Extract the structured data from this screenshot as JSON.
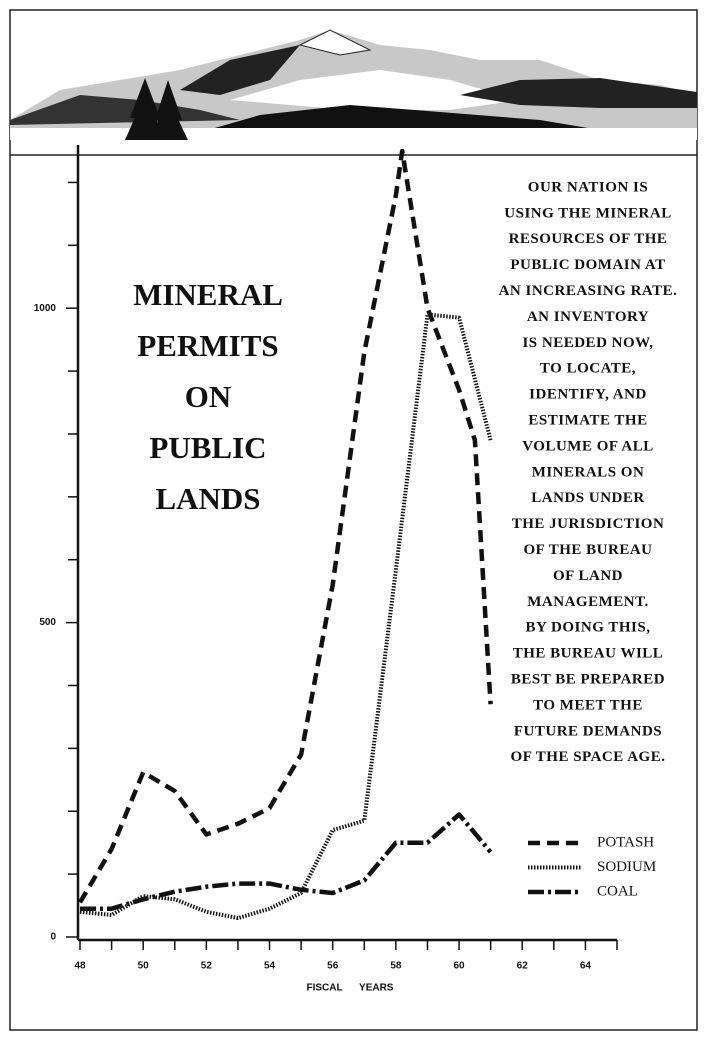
{
  "chart_data": {
    "type": "line",
    "title": [
      "MINERAL",
      "PERMITS",
      "ON",
      "PUBLIC",
      "LANDS"
    ],
    "annotation": [
      "OUR NATION IS",
      "USING THE MINERAL",
      "RESOURCES OF THE",
      "PUBLIC DOMAIN AT",
      "AN INCREASING RATE.",
      "AN INVENTORY",
      "IS NEEDED NOW,",
      "TO LOCATE,",
      "IDENTIFY, AND",
      "ESTIMATE THE",
      "VOLUME OF ALL",
      "MINERALS ON",
      "LANDS UNDER",
      "THE JURISDICTION",
      "OF THE BUREAU",
      "OF LAND",
      "MANAGEMENT.",
      "BY DOING THIS,",
      "THE BUREAU WILL",
      "BEST BE PREPARED",
      "TO MEET THE",
      "FUTURE DEMANDS",
      "OF THE SPACE AGE."
    ],
    "xlabel": "FISCAL YEARS",
    "xlim": [
      48,
      65
    ],
    "xticks": [
      48,
      50,
      52,
      54,
      56,
      58,
      60,
      62,
      64
    ],
    "xminor_ticks": [
      49,
      51,
      53,
      55,
      57,
      59,
      61,
      63,
      65
    ],
    "ylim": [
      0,
      1250
    ],
    "yticks": [
      0,
      500,
      1000
    ],
    "yminor_ticks": [
      100,
      200,
      300,
      400,
      600,
      700,
      800,
      900,
      1100,
      1200
    ],
    "series": [
      {
        "name": "POTASH",
        "color": "#111111",
        "dash": "12,7",
        "width": 4.5,
        "x": [
          48,
          49,
          50,
          51,
          52,
          53,
          54,
          55,
          56,
          57,
          58,
          58.2,
          59,
          60,
          60.5,
          61
        ],
        "values": [
          55,
          140,
          262,
          232,
          163,
          180,
          205,
          290,
          560,
          930,
          1180,
          1250,
          1000,
          870,
          790,
          370
        ]
      },
      {
        "name": "SODIUM",
        "color": "#111111",
        "dash": "1.5,1.5",
        "width": 4,
        "x": [
          48,
          49,
          50,
          51,
          52,
          53,
          54,
          55,
          56,
          57,
          58,
          59,
          60,
          61
        ],
        "values": [
          40,
          35,
          65,
          60,
          40,
          30,
          45,
          70,
          170,
          185,
          584,
          990,
          985,
          790
        ]
      },
      {
        "name": "COAL",
        "color": "#111111",
        "dash": "16,4,3,4",
        "width": 4.5,
        "x": [
          48,
          49,
          50,
          51,
          52,
          53,
          54,
          55,
          56,
          57,
          58,
          59,
          60,
          61
        ],
        "values": [
          45,
          45,
          60,
          72,
          80,
          85,
          85,
          75,
          70,
          90,
          150,
          150,
          195,
          135
        ]
      }
    ]
  }
}
